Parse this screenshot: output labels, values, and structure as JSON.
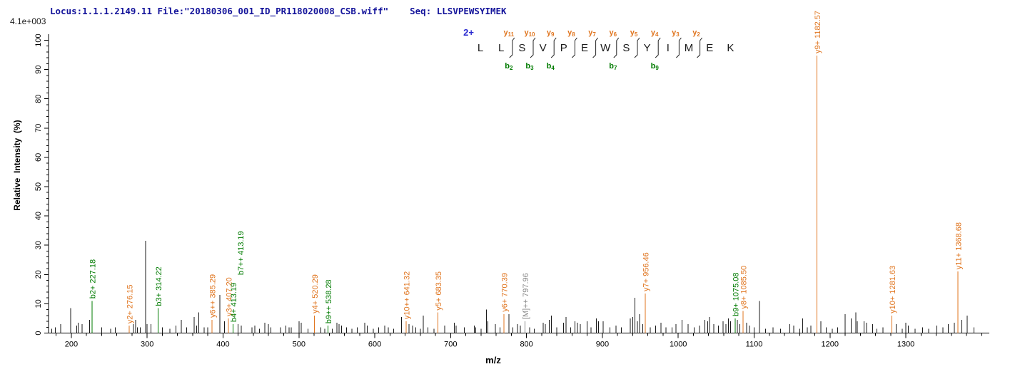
{
  "header": {
    "locus_line": "Locus:1.1.1.2149.11 File:\"20180306_001_ID_PR118020008_CSB.wiff\"",
    "seq_label": "Seq: LLSVPEWSYIMEK",
    "max_intensity": "4.1e+003"
  },
  "sequence_panel": {
    "charge": "2+",
    "residues": [
      "L",
      "L",
      "S",
      "V",
      "P",
      "E",
      "W",
      "S",
      "Y",
      "I",
      "M",
      "E",
      "K"
    ],
    "fragments": [
      {
        "gap_after": 2,
        "y": "y11",
        "b": "b2"
      },
      {
        "gap_after": 3,
        "y": "y10",
        "b": "b3"
      },
      {
        "gap_after": 4,
        "y": "y9",
        "b": "b4"
      },
      {
        "gap_after": 5,
        "y": "y8",
        "b": null
      },
      {
        "gap_after": 6,
        "y": "y7",
        "b": null
      },
      {
        "gap_after": 7,
        "y": "y6",
        "b": "b7"
      },
      {
        "gap_after": 8,
        "y": "y5",
        "b": null
      },
      {
        "gap_after": 9,
        "y": "y4",
        "b": "b9"
      },
      {
        "gap_after": 10,
        "y": "y3",
        "b": null
      },
      {
        "gap_after": 11,
        "y": "y2",
        "b": null
      }
    ]
  },
  "colors": {
    "header_text": "#14149b",
    "charge": "#2a2ad0",
    "y_ion": "#e0751f",
    "b_ion": "#007b00",
    "precursor": "#8a8a8a",
    "peak": "#1a1a1a",
    "axis": "#000000"
  },
  "chart_data": {
    "type": "bar",
    "subtype": "ms2-mass-spectrum",
    "title": "",
    "xlabel": "m/z",
    "ylabel": "Relative  Intensity  (%)",
    "x_range": [
      170,
      1410
    ],
    "y_range": [
      0,
      100
    ],
    "x_major_ticks": [
      200,
      300,
      400,
      500,
      600,
      700,
      800,
      900,
      1000,
      1100,
      1200,
      1300
    ],
    "x_minor_step": 20,
    "y_major_step": 10,
    "y_minor_step": 2,
    "grid": false,
    "legend": false,
    "annotated_peaks": [
      {
        "ion": "b2+",
        "mz": 227.18,
        "pct": 11,
        "type": "b",
        "label": "b2+ 227.18"
      },
      {
        "ion": "y2+",
        "mz": 276.15,
        "pct": 2.5,
        "type": "y",
        "label": "y2+ 276.15"
      },
      {
        "ion": "b3+",
        "mz": 314.22,
        "pct": 8.5,
        "type": "b",
        "label": "b3+ 314.22"
      },
      {
        "ion": "y6++",
        "mz": 385.29,
        "pct": 4.5,
        "type": "y",
        "label": "y6++ 385.29"
      },
      {
        "ion": "y3+",
        "mz": 407.2,
        "pct": 5,
        "type": "y",
        "label": "y3+ 407.20"
      },
      {
        "ion": "b4+",
        "mz": 413.19,
        "pct": 3,
        "type": "b",
        "label": "b4+ 413.19"
      },
      {
        "ion": "b7++",
        "mz": 413.19,
        "pct": 3,
        "type": "b",
        "label": "b7++ 413.19"
      },
      {
        "ion": "y4+",
        "mz": 520.29,
        "pct": 6,
        "type": "y",
        "label": "y4+ 520.29"
      },
      {
        "ion": "b9++",
        "mz": 538.28,
        "pct": 2.5,
        "type": "b",
        "label": "b9++ 538.28"
      },
      {
        "ion": "y10++",
        "mz": 641.32,
        "pct": 4,
        "type": "y",
        "label": "y10++ 641.32"
      },
      {
        "ion": "y5+",
        "mz": 683.35,
        "pct": 7,
        "type": "y",
        "label": "y5+ 683.35"
      },
      {
        "ion": "y6+",
        "mz": 770.39,
        "pct": 6.5,
        "type": "y",
        "label": "y6+ 770.39"
      },
      {
        "ion": "[M]++",
        "mz": 797.96,
        "pct": 4,
        "type": "precursor",
        "label": "[M]++ 797.96"
      },
      {
        "ion": "y7+",
        "mz": 956.46,
        "pct": 13.5,
        "type": "y",
        "label": "y7+ 956.46"
      },
      {
        "ion": "b9+",
        "mz": 1075.08,
        "pct": 5,
        "type": "b",
        "label": "b9+ 1075.08"
      },
      {
        "ion": "y8+",
        "mz": 1085.5,
        "pct": 7.5,
        "type": "y",
        "label": "y8+ 1085.50"
      },
      {
        "ion": "y9+",
        "mz": 1182.57,
        "pct": 100,
        "type": "y",
        "label": "y9+ 1182.57"
      },
      {
        "ion": "y10+",
        "mz": 1281.63,
        "pct": 6,
        "type": "y",
        "label": "y10+ 1281.63"
      },
      {
        "ion": "y11+",
        "mz": 1368.68,
        "pct": 21,
        "type": "y",
        "label": "y11+ 1368.68"
      }
    ],
    "noise_peaks": [
      [
        174,
        1.5
      ],
      [
        179,
        2
      ],
      [
        186,
        3
      ],
      [
        199,
        8.5
      ],
      [
        207,
        2.5
      ],
      [
        209,
        3.5
      ],
      [
        214,
        3
      ],
      [
        224,
        4.5
      ],
      [
        240,
        2
      ],
      [
        252,
        1.5
      ],
      [
        258,
        2
      ],
      [
        282,
        3
      ],
      [
        285,
        4.5
      ],
      [
        287,
        2
      ],
      [
        291,
        2
      ],
      [
        298,
        31.5
      ],
      [
        300,
        3
      ],
      [
        305,
        3
      ],
      [
        320,
        2
      ],
      [
        330,
        1.5
      ],
      [
        338,
        2.5
      ],
      [
        345,
        4.5
      ],
      [
        352,
        2
      ],
      [
        362,
        5.5
      ],
      [
        365,
        2.5
      ],
      [
        368,
        7
      ],
      [
        375,
        2
      ],
      [
        380,
        2
      ],
      [
        396,
        13
      ],
      [
        402,
        4
      ],
      [
        420,
        3
      ],
      [
        424,
        2.5
      ],
      [
        438,
        2
      ],
      [
        442,
        2.5
      ],
      [
        448,
        1.5
      ],
      [
        455,
        3.5
      ],
      [
        460,
        3
      ],
      [
        463,
        2
      ],
      [
        476,
        2
      ],
      [
        483,
        2.5
      ],
      [
        487,
        2
      ],
      [
        490,
        2
      ],
      [
        500,
        4
      ],
      [
        503,
        3.5
      ],
      [
        512,
        1.5
      ],
      [
        529,
        2
      ],
      [
        534,
        1.5
      ],
      [
        544,
        1.5
      ],
      [
        550,
        3.5
      ],
      [
        553,
        3
      ],
      [
        556,
        2.5
      ],
      [
        563,
        2
      ],
      [
        570,
        1.5
      ],
      [
        577,
        2
      ],
      [
        587,
        3.5
      ],
      [
        590,
        2.5
      ],
      [
        598,
        1.5
      ],
      [
        605,
        2
      ],
      [
        613,
        2.5
      ],
      [
        618,
        2
      ],
      [
        625,
        1.5
      ],
      [
        635,
        5.5
      ],
      [
        645,
        3
      ],
      [
        650,
        2.5
      ],
      [
        654,
        2
      ],
      [
        660,
        1.5
      ],
      [
        664,
        6
      ],
      [
        670,
        2
      ],
      [
        678,
        1.5
      ],
      [
        692,
        2.5
      ],
      [
        705,
        3.5
      ],
      [
        707,
        2.5
      ],
      [
        718,
        2
      ],
      [
        731,
        2.5
      ],
      [
        733,
        2
      ],
      [
        740,
        1.5
      ],
      [
        747,
        8
      ],
      [
        749,
        4
      ],
      [
        759,
        3
      ],
      [
        765,
        2
      ],
      [
        777,
        6.5
      ],
      [
        782,
        2
      ],
      [
        788,
        3
      ],
      [
        792,
        2.5
      ],
      [
        804,
        2
      ],
      [
        810,
        1.5
      ],
      [
        822,
        3.5
      ],
      [
        825,
        3
      ],
      [
        830,
        4.5
      ],
      [
        833,
        6
      ],
      [
        840,
        2
      ],
      [
        849,
        3.5
      ],
      [
        852,
        5.5
      ],
      [
        858,
        2
      ],
      [
        864,
        4
      ],
      [
        867,
        3.5
      ],
      [
        871,
        3
      ],
      [
        880,
        4
      ],
      [
        885,
        2
      ],
      [
        892,
        5
      ],
      [
        895,
        4
      ],
      [
        901,
        4
      ],
      [
        910,
        2
      ],
      [
        918,
        2.5
      ],
      [
        925,
        2
      ],
      [
        937,
        5
      ],
      [
        940,
        5.5
      ],
      [
        943,
        12
      ],
      [
        946,
        4
      ],
      [
        949,
        6.5
      ],
      [
        953,
        3
      ],
      [
        963,
        2
      ],
      [
        970,
        2.5
      ],
      [
        977,
        3.5
      ],
      [
        984,
        2
      ],
      [
        992,
        2
      ],
      [
        997,
        3
      ],
      [
        1005,
        4.5
      ],
      [
        1013,
        3
      ],
      [
        1021,
        2
      ],
      [
        1028,
        2.5
      ],
      [
        1035,
        4.5
      ],
      [
        1039,
        4
      ],
      [
        1041,
        5.5
      ],
      [
        1047,
        3
      ],
      [
        1053,
        2.5
      ],
      [
        1059,
        4
      ],
      [
        1063,
        3
      ],
      [
        1066,
        5
      ],
      [
        1069,
        4
      ],
      [
        1078,
        4.5
      ],
      [
        1081,
        3
      ],
      [
        1090,
        3.5
      ],
      [
        1094,
        2.5
      ],
      [
        1100,
        2
      ],
      [
        1107,
        11
      ],
      [
        1115,
        1.5
      ],
      [
        1125,
        2
      ],
      [
        1135,
        1.5
      ],
      [
        1147,
        3
      ],
      [
        1152,
        2.5
      ],
      [
        1160,
        1.5
      ],
      [
        1164,
        5
      ],
      [
        1170,
        2
      ],
      [
        1175,
        2.5
      ],
      [
        1188,
        4
      ],
      [
        1195,
        2
      ],
      [
        1203,
        1.5
      ],
      [
        1210,
        2
      ],
      [
        1220,
        6.5
      ],
      [
        1228,
        5
      ],
      [
        1234,
        7
      ],
      [
        1236,
        4
      ],
      [
        1245,
        4
      ],
      [
        1248,
        3.5
      ],
      [
        1256,
        3
      ],
      [
        1262,
        1.5
      ],
      [
        1270,
        2
      ],
      [
        1287,
        3
      ],
      [
        1295,
        1.5
      ],
      [
        1300,
        3.5
      ],
      [
        1303,
        2.5
      ],
      [
        1312,
        1.5
      ],
      [
        1322,
        2
      ],
      [
        1330,
        1.5
      ],
      [
        1341,
        2.5
      ],
      [
        1349,
        2
      ],
      [
        1356,
        3
      ],
      [
        1364,
        3.5
      ],
      [
        1374,
        4.5
      ],
      [
        1381,
        6
      ],
      [
        1390,
        2
      ]
    ]
  }
}
